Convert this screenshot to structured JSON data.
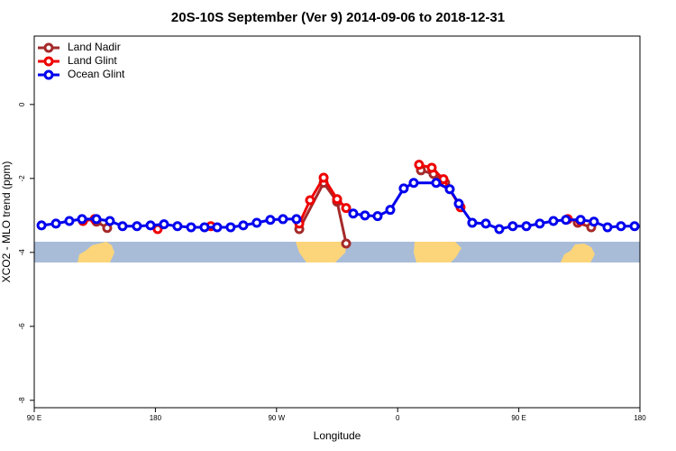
{
  "chart_data": {
    "type": "line",
    "title": "20S-10S September (Ver 9)   2014-09-06 to 2018-12-31",
    "x_label": "Longitude",
    "y_label": "XCO2 - MLO trend (ppm)",
    "xlim": [
      90,
      540
    ],
    "ylim": [
      -8.2,
      1.85
    ],
    "xticks": [
      {
        "value": 90,
        "label": "90 E"
      },
      {
        "value": 180,
        "label": "180"
      },
      {
        "value": 270,
        "label": "90 W"
      },
      {
        "value": 360,
        "label": "0"
      },
      {
        "value": 450,
        "label": "90 E"
      },
      {
        "value": 540,
        "label": "180"
      }
    ],
    "yticks": [
      0,
      -2,
      -4,
      -6,
      -8
    ],
    "legend": "top-left",
    "series": [
      {
        "name": "Land Nadir",
        "color": "#a52a2a",
        "x": [
          136.2,
          144.2,
          200,
          286.9,
          305.0,
          315.0,
          321.7,
          350,
          377.3,
          386.6,
          395.3,
          450,
          493.8,
          503.8
        ],
        "values": [
          -3.17,
          -3.34,
          null,
          -3.37,
          -2.12,
          -2.63,
          -3.76,
          null,
          -1.78,
          -1.88,
          -2.12,
          null,
          -3.2,
          -3.32
        ]
      },
      {
        "name": "Land Glint",
        "color": "#ee0000",
        "x": [
          126.2,
          134.9,
          158,
          181.7,
          200,
          221.2,
          250,
          286.9,
          294.9,
          305.0,
          315.0,
          321.7,
          350,
          375.9,
          385.3,
          394.0,
          406.7,
          450,
          486.4,
          495.8
        ],
        "values": [
          -3.15,
          -3.1,
          null,
          -3.37,
          null,
          -3.29,
          null,
          -3.22,
          -2.59,
          -1.98,
          -2.56,
          -2.8,
          null,
          -1.63,
          -1.71,
          -2.02,
          -2.78,
          null,
          -3.1,
          -3.15
        ]
      },
      {
        "name": "Ocean Glint",
        "color": "#0000ee",
        "x": [
          95.4,
          106.1,
          116.1,
          125.5,
          136.2,
          146.2,
          155.6,
          166.3,
          176.4,
          186.4,
          196.4,
          206.5,
          216.5,
          225.9,
          235.9,
          245.3,
          255.3,
          265.4,
          274.8,
          284.8,
          305,
          327.0,
          335.7,
          345.1,
          354.5,
          364.5,
          371.9,
          388.6,
          398.7,
          405.4,
          415.4,
          425.5,
          435.5,
          445.5,
          455.6,
          465.6,
          475.7,
          485.0,
          495.9,
          505.8,
          515.9,
          525.9,
          536.0
        ],
        "values": [
          -3.27,
          -3.22,
          -3.15,
          -3.1,
          -3.1,
          -3.15,
          -3.29,
          -3.29,
          -3.27,
          -3.24,
          -3.29,
          -3.32,
          -3.32,
          -3.32,
          -3.32,
          -3.27,
          -3.2,
          -3.12,
          -3.1,
          -3.1,
          null,
          -2.95,
          -3.0,
          -3.02,
          -2.85,
          -2.27,
          -2.12,
          -2.12,
          -2.29,
          -2.68,
          -3.2,
          -3.22,
          -3.37,
          -3.29,
          -3.29,
          -3.22,
          -3.15,
          -3.12,
          -3.12,
          -3.17,
          -3.32,
          -3.29,
          -3.29
        ]
      }
    ]
  }
}
